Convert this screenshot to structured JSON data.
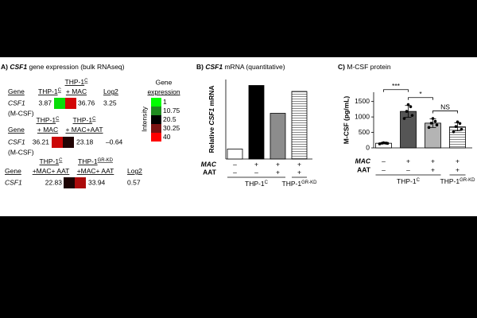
{
  "panel_a": {
    "label": "A)",
    "gene": "CSF1",
    "title": "gene expression (bulk RNAseq)",
    "tables": [
      {
        "headers": [
          [
            {
              "text": "Gene"
            }
          ],
          [
            {
              "text": "THP-1",
              "sup": "C"
            }
          ],
          [
            {
              "text": "THP-1",
              "sup": "C"
            },
            {
              "text": "+ MAC"
            }
          ],
          [
            {
              "text": "Log2"
            }
          ]
        ],
        "gene": "CSF1",
        "alias": "(M-CSF)",
        "values": [
          3.87,
          36.76
        ],
        "log2": 3.25
      },
      {
        "headers": [
          [
            {
              "text": "Gene"
            }
          ],
          [
            {
              "text": "THP-1",
              "sup": "C"
            },
            {
              "text": "+ MAC"
            }
          ],
          [
            {
              "text": "THP-1",
              "sup": "C"
            },
            {
              "text": "+ MAC+AAT"
            }
          ]
        ],
        "gene": "CSF1",
        "alias": "(M-CSF)",
        "values": [
          36.21,
          23.18
        ],
        "log2": {
          "value": -0.64,
          "label": "–0.64"
        }
      },
      {
        "headers": [
          [
            {
              "text": "Gene"
            }
          ],
          [
            {
              "text": "THP-1",
              "sup": "C"
            },
            {
              "text": "+MAC+ AAT"
            }
          ],
          [
            {
              "text": "THP-1",
              "sup": "GR-KD"
            },
            {
              "text": "+MAC+ AAT"
            }
          ],
          [
            {
              "text": "Log2"
            }
          ]
        ],
        "gene": "CSF1",
        "values": [
          22.83,
          33.94
        ],
        "log2": 0.57
      }
    ],
    "scale": {
      "title": [
        "Gene",
        "expression"
      ],
      "axis_label": "Intensity",
      "ticks": [
        1,
        10.75,
        20.5,
        30.25,
        40
      ],
      "colors": [
        "#00ff00",
        "#1f8a1f",
        "#000000",
        "#7a1212",
        "#ff0000"
      ]
    }
  },
  "chart_data": [
    {
      "type": "bar",
      "label": "B)",
      "title_gene": "CSF1",
      "title": "mRNA (quantitative)",
      "y_label": [
        "Relative",
        "CSF1",
        "mRNA"
      ],
      "categories": [
        null,
        null,
        null,
        null
      ],
      "values": [
        5,
        37,
        23,
        34
      ],
      "colors": [
        "#ffffff",
        "#000000",
        "#8c8c8c",
        "#ffffff"
      ],
      "hatch": [
        false,
        false,
        false,
        true
      ],
      "ylim": [
        0,
        40
      ],
      "x_rows": [
        {
          "label": "MAC",
          "values": [
            "–",
            "+",
            "+",
            "+"
          ]
        },
        {
          "label": "AAT",
          "values": [
            "–",
            "–",
            "+",
            "+"
          ]
        }
      ],
      "groups": [
        {
          "text": "THP-1",
          "sup": "C"
        },
        {
          "text": "THP-1",
          "sup": "GR-KD"
        }
      ]
    },
    {
      "type": "bar",
      "label": "C)",
      "title": "M-CSF protein",
      "y_label": "M-CSF (pg/mL)",
      "categories": [
        null,
        null,
        null,
        null
      ],
      "values": [
        150,
        1180,
        800,
        680
      ],
      "errors": [
        20,
        190,
        140,
        130
      ],
      "points": [
        [
          130,
          145,
          150,
          155,
          165
        ],
        [
          950,
          1050,
          1180,
          1330,
          1400
        ],
        [
          660,
          740,
          800,
          860,
          950
        ],
        [
          520,
          600,
          690,
          790,
          840
        ]
      ],
      "colors": [
        "#ffffff",
        "#555555",
        "#b4b4b4",
        "#dcdcdc"
      ],
      "hatch": [
        false,
        false,
        false,
        true
      ],
      "ylim": [
        0,
        1800
      ],
      "yticks": [
        0,
        500,
        1000,
        1500
      ],
      "significance": [
        "***",
        "*",
        "NS"
      ],
      "x_rows": [
        {
          "label": "MAC",
          "values": [
            "–",
            "+",
            "+",
            "+"
          ]
        },
        {
          "label": "AAT",
          "values": [
            "–",
            "–",
            "+",
            "+"
          ]
        }
      ],
      "groups": [
        {
          "text": "THP-1",
          "sup": "C"
        },
        {
          "text": "THP-1",
          "sup": "GR-KD"
        }
      ]
    }
  ]
}
